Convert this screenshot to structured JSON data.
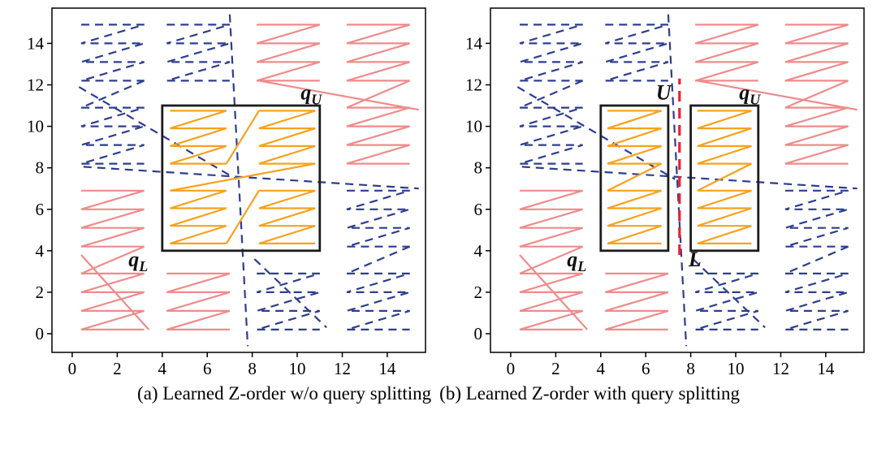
{
  "colors": {
    "pink": "#ef8b8b",
    "blue": "#2d3d8f",
    "orange": "#f6a21d",
    "red": "#e8222d",
    "black": "#1c1c1c"
  },
  "caption": {
    "a": "(a) Learned Z-order w/o query splitting",
    "b": "(b) Learned Z-order with query splitting"
  },
  "chart_data": [
    {
      "id": "a",
      "type": "line",
      "title": "Learned Z-order w/o query splitting",
      "xlabel": "",
      "ylabel": "",
      "xlim": [
        -0.9,
        15.7
      ],
      "ylim": [
        -0.9,
        15.7
      ],
      "xticks": [
        0,
        2,
        4,
        6,
        8,
        10,
        12,
        14
      ],
      "yticks": [
        0,
        2,
        4,
        6,
        8,
        10,
        12,
        14
      ],
      "grid": false,
      "legend": "none",
      "series": [
        {
          "name": "learned-z-order-curve-partition-1",
          "color": "pink",
          "style": "solid"
        },
        {
          "name": "learned-z-order-curve-partition-2",
          "color": "blue",
          "style": "dashed"
        },
        {
          "name": "z-order-curve-inside-query",
          "color": "orange",
          "style": "solid"
        }
      ],
      "query_rects": [
        {
          "x": 4,
          "y": 4,
          "w": 7,
          "h": 7
        }
      ],
      "split_lines": [],
      "annotations": [
        {
          "text": "q",
          "sub": "U",
          "x": 10.15,
          "y": 11.3
        },
        {
          "text": "q",
          "sub": "L",
          "x": 2.5,
          "y": 3.25
        }
      ],
      "curves": [
        {
          "kind": "zigzag",
          "color": "blue",
          "dashed": true,
          "x": 0.4,
          "y": 14.9,
          "w": 2.8,
          "rows": 4,
          "dy": 0.9
        },
        {
          "kind": "zigzag",
          "color": "blue",
          "dashed": true,
          "x": 4.2,
          "y": 14.9,
          "w": 2.8,
          "rows": 4,
          "dy": 0.9
        },
        {
          "kind": "zigzag",
          "color": "blue",
          "dashed": true,
          "x": 0.4,
          "y": 10.9,
          "w": 2.8,
          "rows": 4,
          "dy": 0.9
        },
        {
          "kind": "zigzag",
          "color": "blue",
          "dashed": true,
          "x": 12.2,
          "y": 6.9,
          "w": 2.8,
          "rows": 4,
          "dy": 0.9
        },
        {
          "kind": "zigzag",
          "color": "blue",
          "dashed": true,
          "x": 8.2,
          "y": 2.9,
          "w": 2.8,
          "rows": 4,
          "dy": 0.9
        },
        {
          "kind": "zigzag",
          "color": "blue",
          "dashed": true,
          "x": 12.2,
          "y": 2.9,
          "w": 2.8,
          "rows": 4,
          "dy": 0.9
        },
        {
          "kind": "segment",
          "color": "blue",
          "dashed": true,
          "points": [
            [
              3.2,
              12.2
            ],
            [
              0.4,
              10.9
            ]
          ]
        },
        {
          "kind": "segment",
          "color": "blue",
          "dashed": true,
          "points": [
            [
              0.3,
              11.9
            ],
            [
              7.3,
              7.45
            ]
          ]
        },
        {
          "kind": "segment",
          "color": "blue",
          "dashed": true,
          "points": [
            [
              0.5,
              8.05
            ],
            [
              15.4,
              7.0
            ]
          ]
        },
        {
          "kind": "segment",
          "color": "blue",
          "dashed": true,
          "points": [
            [
              7.0,
              15.4
            ],
            [
              7.8,
              -0.6
            ]
          ]
        },
        {
          "kind": "segment",
          "color": "blue",
          "dashed": true,
          "points": [
            [
              8.1,
              3.6
            ],
            [
              11.3,
              0.3
            ]
          ]
        },
        {
          "kind": "segment",
          "color": "blue",
          "dashed": true,
          "points": [
            [
              15.0,
              4.2
            ],
            [
              12.2,
              2.9
            ]
          ]
        },
        {
          "kind": "zigzag",
          "color": "pink",
          "dashed": false,
          "x": 0.4,
          "y": 6.9,
          "w": 2.8,
          "rows": 4,
          "dy": 0.9
        },
        {
          "kind": "zigzag",
          "color": "pink",
          "dashed": false,
          "x": 0.4,
          "y": 2.9,
          "w": 2.8,
          "rows": 4,
          "dy": 0.9
        },
        {
          "kind": "zigzag",
          "color": "pink",
          "dashed": false,
          "x": 4.2,
          "y": 2.9,
          "w": 2.8,
          "rows": 4,
          "dy": 0.9
        },
        {
          "kind": "segment",
          "color": "pink",
          "dashed": false,
          "points": [
            [
              3.2,
              4.2
            ],
            [
              0.4,
              2.9
            ]
          ]
        },
        {
          "kind": "segment",
          "color": "pink",
          "dashed": false,
          "points": [
            [
              0.4,
              3.8
            ],
            [
              3.4,
              0.2
            ]
          ]
        },
        {
          "kind": "zigzag",
          "color": "pink",
          "dashed": false,
          "x": 8.2,
          "y": 14.9,
          "w": 2.8,
          "rows": 4,
          "dy": 0.9
        },
        {
          "kind": "zigzag",
          "color": "pink",
          "dashed": false,
          "x": 12.2,
          "y": 14.9,
          "w": 2.8,
          "rows": 4,
          "dy": 0.9
        },
        {
          "kind": "zigzag",
          "color": "pink",
          "dashed": false,
          "x": 12.2,
          "y": 10.9,
          "w": 2.8,
          "rows": 4,
          "dy": 0.9
        },
        {
          "kind": "segment",
          "color": "pink",
          "dashed": false,
          "points": [
            [
              8.3,
              12.2
            ],
            [
              15.4,
              10.8
            ]
          ]
        },
        {
          "kind": "segment",
          "color": "pink",
          "dashed": false,
          "points": [
            [
              15.0,
              12.2
            ],
            [
              12.2,
              10.9
            ]
          ]
        },
        {
          "kind": "zigzag",
          "color": "orange",
          "dashed": false,
          "x": 4.35,
          "y": 10.75,
          "w": 2.5,
          "rows": 4,
          "dy": 0.85
        },
        {
          "kind": "zigzag",
          "color": "orange",
          "dashed": false,
          "x": 8.3,
          "y": 10.75,
          "w": 2.5,
          "rows": 4,
          "dy": 0.85
        },
        {
          "kind": "zigzag",
          "color": "orange",
          "dashed": false,
          "x": 4.35,
          "y": 6.9,
          "w": 2.5,
          "rows": 4,
          "dy": 0.85
        },
        {
          "kind": "zigzag",
          "color": "orange",
          "dashed": false,
          "x": 8.3,
          "y": 6.9,
          "w": 2.5,
          "rows": 4,
          "dy": 0.85
        },
        {
          "kind": "segment",
          "color": "orange",
          "dashed": false,
          "points": [
            [
              6.85,
              8.2
            ],
            [
              8.3,
              10.75
            ]
          ]
        },
        {
          "kind": "segment",
          "color": "orange",
          "dashed": false,
          "points": [
            [
              10.8,
              8.2
            ],
            [
              4.35,
              6.9
            ]
          ]
        },
        {
          "kind": "segment",
          "color": "orange",
          "dashed": false,
          "points": [
            [
              6.85,
              4.35
            ],
            [
              8.3,
              6.9
            ]
          ]
        }
      ]
    },
    {
      "id": "b",
      "type": "line",
      "title": "Learned Z-order with query splitting",
      "xlabel": "",
      "ylabel": "",
      "xlim": [
        -0.9,
        15.7
      ],
      "ylim": [
        -0.9,
        15.7
      ],
      "xticks": [
        0,
        2,
        4,
        6,
        8,
        10,
        12,
        14
      ],
      "yticks": [
        0,
        2,
        4,
        6,
        8,
        10,
        12,
        14
      ],
      "grid": false,
      "legend": "none",
      "series": [
        {
          "name": "learned-z-order-curve-partition-1",
          "color": "pink",
          "style": "solid"
        },
        {
          "name": "learned-z-order-curve-partition-2",
          "color": "blue",
          "style": "dashed"
        },
        {
          "name": "z-order-curve-inside-query",
          "color": "orange",
          "style": "solid"
        },
        {
          "name": "query-split-line",
          "color": "red",
          "style": "dashed"
        }
      ],
      "query_rects": [
        {
          "x": 4,
          "y": 4,
          "w": 3,
          "h": 7
        },
        {
          "x": 8,
          "y": 4,
          "w": 3,
          "h": 7
        }
      ],
      "split_lines": [
        {
          "x": 7.5,
          "y1": 3.8,
          "y2": 12.3
        }
      ],
      "annotations": [
        {
          "text": "U",
          "x": 6.45,
          "y": 11.3
        },
        {
          "text": "q",
          "sub": "U",
          "x": 10.15,
          "y": 11.3
        },
        {
          "text": "q",
          "sub": "L",
          "x": 2.5,
          "y": 3.25
        },
        {
          "text": "L",
          "x": 7.9,
          "y": 3.25
        }
      ],
      "curves": [
        {
          "kind": "zigzag",
          "color": "blue",
          "dashed": true,
          "x": 0.4,
          "y": 14.9,
          "w": 2.8,
          "rows": 4,
          "dy": 0.9
        },
        {
          "kind": "zigzag",
          "color": "blue",
          "dashed": true,
          "x": 4.2,
          "y": 14.9,
          "w": 2.8,
          "rows": 4,
          "dy": 0.9
        },
        {
          "kind": "zigzag",
          "color": "blue",
          "dashed": true,
          "x": 0.4,
          "y": 10.9,
          "w": 2.8,
          "rows": 4,
          "dy": 0.9
        },
        {
          "kind": "zigzag",
          "color": "blue",
          "dashed": true,
          "x": 12.2,
          "y": 6.9,
          "w": 2.8,
          "rows": 4,
          "dy": 0.9
        },
        {
          "kind": "zigzag",
          "color": "blue",
          "dashed": true,
          "x": 8.2,
          "y": 2.9,
          "w": 2.8,
          "rows": 4,
          "dy": 0.9
        },
        {
          "kind": "zigzag",
          "color": "blue",
          "dashed": true,
          "x": 12.2,
          "y": 2.9,
          "w": 2.8,
          "rows": 4,
          "dy": 0.9
        },
        {
          "kind": "segment",
          "color": "blue",
          "dashed": true,
          "points": [
            [
              3.2,
              12.2
            ],
            [
              0.4,
              10.9
            ]
          ]
        },
        {
          "kind": "segment",
          "color": "blue",
          "dashed": true,
          "points": [
            [
              0.3,
              11.9
            ],
            [
              7.3,
              7.45
            ]
          ]
        },
        {
          "kind": "segment",
          "color": "blue",
          "dashed": true,
          "points": [
            [
              0.5,
              8.05
            ],
            [
              15.4,
              7.0
            ]
          ]
        },
        {
          "kind": "segment",
          "color": "blue",
          "dashed": true,
          "points": [
            [
              7.0,
              15.4
            ],
            [
              7.8,
              -0.6
            ]
          ]
        },
        {
          "kind": "segment",
          "color": "blue",
          "dashed": true,
          "points": [
            [
              8.1,
              3.6
            ],
            [
              11.3,
              0.3
            ]
          ]
        },
        {
          "kind": "segment",
          "color": "blue",
          "dashed": true,
          "points": [
            [
              15.0,
              4.2
            ],
            [
              12.2,
              2.9
            ]
          ]
        },
        {
          "kind": "zigzag",
          "color": "pink",
          "dashed": false,
          "x": 0.4,
          "y": 6.9,
          "w": 2.8,
          "rows": 4,
          "dy": 0.9
        },
        {
          "kind": "zigzag",
          "color": "pink",
          "dashed": false,
          "x": 0.4,
          "y": 2.9,
          "w": 2.8,
          "rows": 4,
          "dy": 0.9
        },
        {
          "kind": "zigzag",
          "color": "pink",
          "dashed": false,
          "x": 4.2,
          "y": 2.9,
          "w": 2.8,
          "rows": 4,
          "dy": 0.9
        },
        {
          "kind": "segment",
          "color": "pink",
          "dashed": false,
          "points": [
            [
              3.2,
              4.2
            ],
            [
              0.4,
              2.9
            ]
          ]
        },
        {
          "kind": "segment",
          "color": "pink",
          "dashed": false,
          "points": [
            [
              0.4,
              3.8
            ],
            [
              3.4,
              0.2
            ]
          ]
        },
        {
          "kind": "zigzag",
          "color": "pink",
          "dashed": false,
          "x": 8.2,
          "y": 14.9,
          "w": 2.8,
          "rows": 4,
          "dy": 0.9
        },
        {
          "kind": "zigzag",
          "color": "pink",
          "dashed": false,
          "x": 12.2,
          "y": 14.9,
          "w": 2.8,
          "rows": 4,
          "dy": 0.9
        },
        {
          "kind": "zigzag",
          "color": "pink",
          "dashed": false,
          "x": 12.2,
          "y": 10.9,
          "w": 2.8,
          "rows": 4,
          "dy": 0.9
        },
        {
          "kind": "segment",
          "color": "pink",
          "dashed": false,
          "points": [
            [
              8.3,
              12.2
            ],
            [
              15.4,
              10.8
            ]
          ]
        },
        {
          "kind": "segment",
          "color": "pink",
          "dashed": false,
          "points": [
            [
              15.0,
              12.2
            ],
            [
              12.2,
              10.9
            ]
          ]
        },
        {
          "kind": "zigzag",
          "color": "orange",
          "dashed": false,
          "x": 4.3,
          "y": 10.75,
          "w": 2.4,
          "rows": 4,
          "dy": 0.85
        },
        {
          "kind": "zigzag",
          "color": "orange",
          "dashed": false,
          "x": 4.3,
          "y": 6.9,
          "w": 2.4,
          "rows": 4,
          "dy": 0.85
        },
        {
          "kind": "zigzag",
          "color": "orange",
          "dashed": false,
          "x": 8.3,
          "y": 10.75,
          "w": 2.4,
          "rows": 4,
          "dy": 0.85
        },
        {
          "kind": "zigzag",
          "color": "orange",
          "dashed": false,
          "x": 8.3,
          "y": 6.9,
          "w": 2.4,
          "rows": 4,
          "dy": 0.85
        },
        {
          "kind": "segment",
          "color": "orange",
          "dashed": false,
          "points": [
            [
              6.7,
              8.2
            ],
            [
              4.3,
              6.9
            ]
          ]
        },
        {
          "kind": "segment",
          "color": "orange",
          "dashed": false,
          "points": [
            [
              10.7,
              8.2
            ],
            [
              8.3,
              6.9
            ]
          ]
        }
      ]
    }
  ]
}
